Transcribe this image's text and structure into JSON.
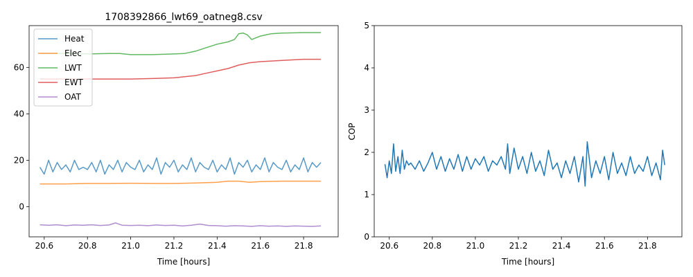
{
  "chart_data": [
    {
      "type": "line",
      "title": "1708392866_lwt69_oatneg8.csv",
      "xlabel": "Time [hours]",
      "ylabel": "",
      "xlim": [
        20.53,
        21.96
      ],
      "ylim": [
        -13,
        78
      ],
      "xticks": [
        20.6,
        20.8,
        21.0,
        21.2,
        21.4,
        21.6,
        21.8
      ],
      "yticks": [
        0,
        20,
        40,
        60
      ],
      "xtick_labels": [
        "20.6",
        "20.8",
        "21.0",
        "21.2",
        "21.4",
        "21.6",
        "21.8"
      ],
      "ytick_labels": [
        "0",
        "20",
        "40",
        "60"
      ],
      "grid": false,
      "legend_position": "top-left",
      "series": [
        {
          "name": "Heat",
          "color": "#1f77b4",
          "x": [
            20.58,
            20.6,
            20.62,
            20.64,
            20.66,
            20.68,
            20.7,
            20.72,
            20.74,
            20.76,
            20.78,
            20.8,
            20.82,
            20.84,
            20.86,
            20.88,
            20.9,
            20.92,
            20.94,
            20.96,
            20.98,
            21.0,
            21.02,
            21.04,
            21.06,
            21.08,
            21.1,
            21.12,
            21.14,
            21.16,
            21.18,
            21.2,
            21.22,
            21.24,
            21.26,
            21.28,
            21.3,
            21.32,
            21.34,
            21.36,
            21.38,
            21.4,
            21.42,
            21.44,
            21.46,
            21.48,
            21.5,
            21.52,
            21.54,
            21.56,
            21.58,
            21.6,
            21.62,
            21.64,
            21.66,
            21.68,
            21.7,
            21.72,
            21.74,
            21.76,
            21.78,
            21.8,
            21.82,
            21.84,
            21.86,
            21.88
          ],
          "y": [
            17,
            14,
            20,
            15,
            19,
            16,
            18,
            15,
            20,
            16,
            17,
            16,
            19,
            15,
            20,
            14,
            18,
            16,
            20,
            15,
            19,
            17,
            16,
            20,
            15,
            18,
            16,
            21,
            14,
            19,
            17,
            20,
            15,
            18,
            16,
            21,
            15,
            19,
            17,
            16,
            20,
            15,
            18,
            16,
            21,
            14,
            19,
            17,
            20,
            15,
            18,
            16,
            21,
            15,
            19,
            17,
            16,
            20,
            15,
            18,
            16,
            21,
            15,
            19,
            17,
            19
          ]
        },
        {
          "name": "Elec",
          "color": "#ff7f0e",
          "x": [
            20.58,
            20.7,
            20.8,
            20.9,
            21.0,
            21.1,
            21.2,
            21.3,
            21.4,
            21.45,
            21.5,
            21.55,
            21.6,
            21.7,
            21.8,
            21.88
          ],
          "y": [
            9.8,
            9.8,
            10,
            10,
            10.1,
            10,
            10,
            10.2,
            10.5,
            11,
            11,
            10.5,
            10.8,
            11,
            11,
            11
          ]
        },
        {
          "name": "LWT",
          "color": "#2ca02c",
          "x": [
            20.58,
            20.7,
            20.8,
            20.9,
            20.95,
            21.0,
            21.1,
            21.2,
            21.25,
            21.3,
            21.35,
            21.4,
            21.45,
            21.48,
            21.5,
            21.52,
            21.54,
            21.56,
            21.6,
            21.65,
            21.7,
            21.8,
            21.88
          ],
          "y": [
            66,
            66,
            65.8,
            66,
            66,
            65.5,
            65.5,
            65.8,
            66,
            67,
            68.5,
            70,
            71,
            72,
            74.5,
            74.8,
            74,
            72,
            73.5,
            74.5,
            74.8,
            75,
            75
          ]
        },
        {
          "name": "EWT",
          "color": "#d62728",
          "x": [
            20.58,
            20.7,
            20.8,
            20.9,
            21.0,
            21.1,
            21.2,
            21.25,
            21.3,
            21.35,
            21.4,
            21.45,
            21.5,
            21.55,
            21.6,
            21.7,
            21.8,
            21.88
          ],
          "y": [
            55,
            55,
            55,
            55,
            55,
            55.2,
            55.5,
            56,
            56.5,
            57.5,
            58.5,
            59.5,
            61,
            62,
            62.5,
            63,
            63.5,
            63.5
          ]
        },
        {
          "name": "OAT",
          "color": "#9467bd",
          "x": [
            20.58,
            20.62,
            20.66,
            20.7,
            20.74,
            20.78,
            20.82,
            20.86,
            20.9,
            20.93,
            20.96,
            21.0,
            21.04,
            21.08,
            21.12,
            21.16,
            21.2,
            21.24,
            21.28,
            21.32,
            21.36,
            21.4,
            21.44,
            21.48,
            21.52,
            21.56,
            21.6,
            21.64,
            21.68,
            21.72,
            21.76,
            21.8,
            21.84,
            21.88
          ],
          "y": [
            -7.8,
            -8,
            -7.8,
            -8.2,
            -7.9,
            -8,
            -7.8,
            -8.1,
            -7.9,
            -7,
            -8,
            -8.1,
            -8,
            -8.2,
            -7.9,
            -8.1,
            -8,
            -8.3,
            -8,
            -7.5,
            -8.1,
            -8.2,
            -8.4,
            -8.2,
            -8.3,
            -8.5,
            -8.2,
            -8.4,
            -8.3,
            -8.5,
            -8.3,
            -8.4,
            -8.5,
            -8.3
          ]
        }
      ]
    },
    {
      "type": "line",
      "title": "",
      "xlabel": "Time [hours]",
      "ylabel": "COP",
      "xlim": [
        20.53,
        21.96
      ],
      "ylim": [
        0,
        5
      ],
      "xticks": [
        20.6,
        20.8,
        21.0,
        21.2,
        21.4,
        21.6,
        21.8
      ],
      "yticks": [
        0,
        1,
        2,
        3,
        4,
        5
      ],
      "xtick_labels": [
        "20.6",
        "20.8",
        "21.0",
        "21.2",
        "21.4",
        "21.6",
        "21.8"
      ],
      "ytick_labels": [
        "0",
        "1",
        "2",
        "3",
        "4",
        "5"
      ],
      "grid": false,
      "series": [
        {
          "color": "#1f77b4",
          "x": [
            20.58,
            20.59,
            20.6,
            20.61,
            20.62,
            20.63,
            20.64,
            20.65,
            20.66,
            20.67,
            20.68,
            20.69,
            20.7,
            20.72,
            20.74,
            20.76,
            20.78,
            20.8,
            20.82,
            20.84,
            20.86,
            20.88,
            20.9,
            20.92,
            20.94,
            20.96,
            20.98,
            21.0,
            21.02,
            21.04,
            21.06,
            21.08,
            21.1,
            21.12,
            21.14,
            21.15,
            21.16,
            21.18,
            21.2,
            21.22,
            21.24,
            21.26,
            21.28,
            21.3,
            21.32,
            21.34,
            21.36,
            21.38,
            21.4,
            21.42,
            21.44,
            21.46,
            21.48,
            21.5,
            21.51,
            21.52,
            21.54,
            21.56,
            21.58,
            21.6,
            21.62,
            21.64,
            21.66,
            21.68,
            21.7,
            21.72,
            21.74,
            21.76,
            21.78,
            21.8,
            21.82,
            21.84,
            21.86,
            21.87,
            21.88
          ],
          "y": [
            1.72,
            1.4,
            1.8,
            1.5,
            2.2,
            1.55,
            1.9,
            1.5,
            2.05,
            1.6,
            1.8,
            1.7,
            1.75,
            1.6,
            1.8,
            1.55,
            1.75,
            2.0,
            1.6,
            1.9,
            1.55,
            1.85,
            1.6,
            1.95,
            1.55,
            1.9,
            1.6,
            1.85,
            1.7,
            1.9,
            1.55,
            1.8,
            1.7,
            1.9,
            1.6,
            2.2,
            1.5,
            2.1,
            1.6,
            1.9,
            1.5,
            2.0,
            1.55,
            1.8,
            1.45,
            2.05,
            1.6,
            1.75,
            1.4,
            1.8,
            1.5,
            1.9,
            1.3,
            1.9,
            1.2,
            2.25,
            1.4,
            1.8,
            1.5,
            1.9,
            1.35,
            2.0,
            1.5,
            1.75,
            1.45,
            1.9,
            1.5,
            1.7,
            1.55,
            1.9,
            1.45,
            1.75,
            1.35,
            2.05,
            1.7
          ]
        }
      ]
    }
  ]
}
